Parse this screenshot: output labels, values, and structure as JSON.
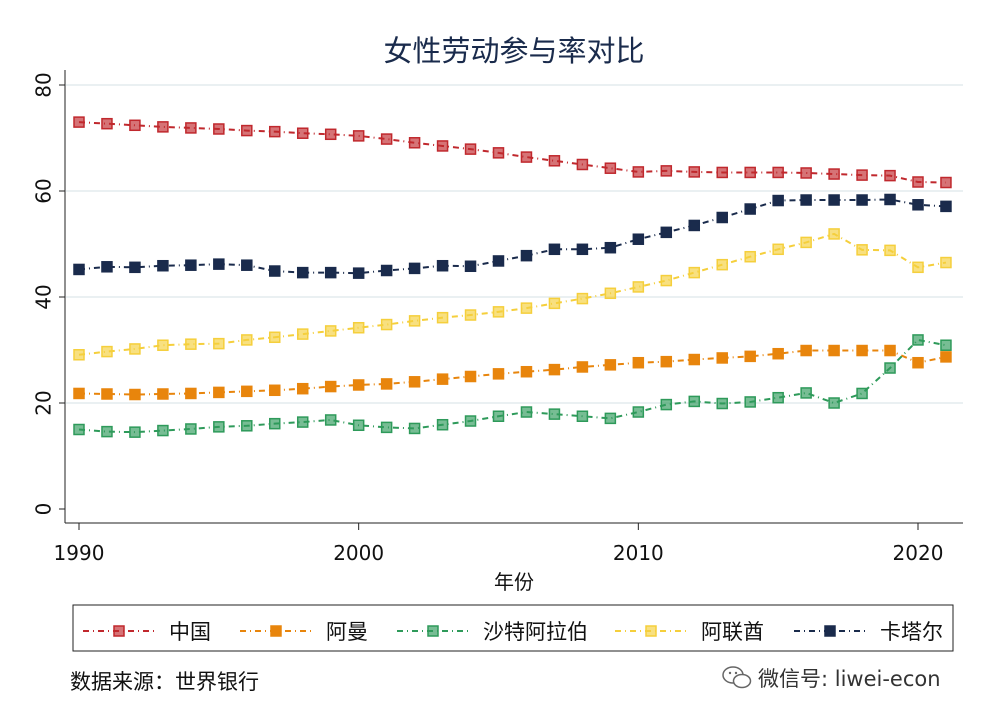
{
  "chart_data": {
    "type": "line",
    "title": "女性劳动参与率对比",
    "xlabel": "年份",
    "ylabel": "",
    "xlim": [
      1990,
      2021
    ],
    "ylim": [
      0,
      80
    ],
    "xticks": [
      1990,
      2000,
      2010,
      2020
    ],
    "yticks": [
      0,
      20,
      40,
      60,
      80
    ],
    "grid": "horizontal",
    "legend": "bottom",
    "x": [
      1990,
      1991,
      1992,
      1993,
      1994,
      1995,
      1996,
      1997,
      1998,
      1999,
      2000,
      2001,
      2002,
      2003,
      2004,
      2005,
      2006,
      2007,
      2008,
      2009,
      2010,
      2011,
      2012,
      2013,
      2014,
      2015,
      2016,
      2017,
      2018,
      2019,
      2020,
      2021
    ],
    "series": [
      {
        "name": "中国",
        "color": "#c0282d",
        "hollow": true,
        "values": [
          73.0,
          72.7,
          72.4,
          72.1,
          71.9,
          71.7,
          71.4,
          71.2,
          70.9,
          70.7,
          70.4,
          69.8,
          69.1,
          68.5,
          67.9,
          67.2,
          66.4,
          65.7,
          65.0,
          64.3,
          63.6,
          63.8,
          63.6,
          63.5,
          63.5,
          63.5,
          63.4,
          63.2,
          63.0,
          62.9,
          61.7,
          61.6
        ]
      },
      {
        "name": "阿曼",
        "color": "#e8850c",
        "hollow": false,
        "values": [
          21.8,
          21.7,
          21.6,
          21.7,
          21.8,
          22.0,
          22.2,
          22.4,
          22.7,
          23.1,
          23.4,
          23.6,
          24.0,
          24.5,
          25.0,
          25.5,
          25.9,
          26.3,
          26.8,
          27.2,
          27.6,
          27.8,
          28.2,
          28.5,
          28.8,
          29.3,
          29.9,
          29.9,
          29.9,
          29.9,
          27.6,
          28.7
        ]
      },
      {
        "name": "沙特阿拉伯",
        "color": "#2e9a5a",
        "hollow": true,
        "values": [
          15.0,
          14.6,
          14.5,
          14.8,
          15.1,
          15.5,
          15.7,
          16.1,
          16.4,
          16.8,
          15.8,
          15.4,
          15.2,
          15.9,
          16.6,
          17.5,
          18.3,
          17.9,
          17.5,
          17.1,
          18.3,
          19.7,
          20.3,
          19.9,
          20.2,
          21.0,
          21.9,
          20.0,
          21.8,
          26.6,
          31.9,
          30.9
        ]
      },
      {
        "name": "阿联酋",
        "color": "#f5cf3c",
        "hollow": true,
        "values": [
          29.1,
          29.7,
          30.2,
          30.9,
          31.1,
          31.2,
          31.9,
          32.4,
          33.0,
          33.6,
          34.2,
          34.8,
          35.5,
          36.1,
          36.6,
          37.2,
          37.9,
          38.8,
          39.7,
          40.7,
          41.9,
          43.1,
          44.6,
          46.1,
          47.6,
          49.0,
          50.3,
          51.9,
          48.9,
          48.8,
          45.6,
          46.5
        ]
      },
      {
        "name": "卡塔尔",
        "color": "#1a2b4c",
        "hollow": false,
        "values": [
          45.2,
          45.7,
          45.6,
          45.9,
          46.0,
          46.2,
          46.0,
          44.9,
          44.6,
          44.6,
          44.5,
          45.0,
          45.4,
          45.9,
          45.8,
          46.8,
          47.8,
          49.0,
          49.0,
          49.3,
          50.9,
          52.2,
          53.5,
          55.0,
          56.6,
          58.2,
          58.3,
          58.3,
          58.3,
          58.4,
          57.4,
          57.1
        ]
      }
    ]
  },
  "source_note": "数据来源：世界银行",
  "watermark": "微信号: liwei-econ"
}
